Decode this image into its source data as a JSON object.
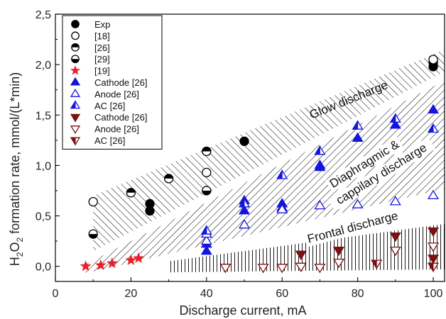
{
  "chart_data": {
    "type": "scatter",
    "xlabel": "Discharge current, mA",
    "ylabel": "H2O2 formation rate, mmol/(L*min)",
    "ylabel_parts": {
      "pre": "H",
      "sub1": "2",
      "mid": "O",
      "sub2": "2",
      "post": " formation rate, mmol/(L*min)"
    },
    "xlim": [
      0,
      103
    ],
    "ylim": [
      -0.15,
      2.5
    ],
    "xticks": [
      0,
      20,
      40,
      60,
      80,
      100
    ],
    "yticks": [
      0.0,
      0.5,
      1.0,
      1.5,
      2.0,
      2.5
    ],
    "xtick_labels": [
      "0",
      "20",
      "40",
      "60",
      "80",
      "100"
    ],
    "ytick_labels": [
      "0,0",
      "0,5",
      "1,0",
      "1,5",
      "2,0",
      "2,5"
    ],
    "grid": false,
    "legend_position": "top-left",
    "bands": [
      {
        "label": "Glow discharge",
        "hatch": "diagonal",
        "lower": [
          [
            10,
            0.15
          ],
          [
            103,
            1.93
          ]
        ],
        "upper": [
          [
            10,
            0.7
          ],
          [
            103,
            2.15
          ]
        ]
      },
      {
        "label_lines": [
          "Diaphragmic &",
          "cappilary discharge"
        ],
        "hatch": "back-diagonal",
        "lower": [
          [
            8,
            -0.07
          ],
          [
            103,
            0.77
          ]
        ],
        "upper": [
          [
            8,
            0.02
          ],
          [
            103,
            1.84
          ]
        ]
      },
      {
        "label": "Frontal discharge",
        "hatch": "vertical",
        "lower": [
          [
            30,
            -0.06
          ],
          [
            103,
            -0.03
          ]
        ],
        "upper": [
          [
            30,
            0.05
          ],
          [
            103,
            0.42
          ]
        ]
      }
    ],
    "series": [
      {
        "name": "Exp",
        "marker": "circle",
        "fill": "full",
        "color": "#000000",
        "points": [
          [
            25,
            0.55
          ],
          [
            25,
            0.62
          ],
          [
            50,
            1.24
          ],
          [
            100,
            1.98
          ],
          [
            100,
            2.02
          ]
        ]
      },
      {
        "name": "[18]",
        "marker": "circle",
        "fill": "none",
        "color": "#000000",
        "points": [
          [
            10,
            0.64
          ],
          [
            40,
            1.14
          ],
          [
            40,
            0.93
          ],
          [
            100,
            2.05
          ]
        ]
      },
      {
        "name": "[26]",
        "marker": "circle",
        "fill": "half-top",
        "color": "#000000",
        "points": [
          [
            20,
            0.73
          ],
          [
            30,
            0.87
          ],
          [
            40,
            1.14
          ]
        ]
      },
      {
        "name": "[29]",
        "marker": "circle",
        "fill": "half-bottom",
        "color": "#000000",
        "points": [
          [
            10,
            0.32
          ],
          [
            40,
            0.75
          ]
        ]
      },
      {
        "name": "[19]",
        "marker": "star",
        "fill": "full",
        "color": "#e8202a",
        "points": [
          [
            8,
            0.0
          ],
          [
            12,
            0.01
          ],
          [
            15,
            0.03
          ],
          [
            20,
            0.06
          ],
          [
            22,
            0.08
          ]
        ]
      },
      {
        "name": "Cathode [26]",
        "marker": "triangle-up",
        "fill": "full",
        "color": "#1515dd",
        "points": [
          [
            40,
            0.15
          ],
          [
            40,
            0.22
          ],
          [
            50,
            0.55
          ],
          [
            50,
            0.65
          ],
          [
            60,
            0.58
          ],
          [
            60,
            0.62
          ],
          [
            70,
            0.98
          ],
          [
            70,
            1.0
          ],
          [
            80,
            1.27
          ],
          [
            90,
            1.4
          ],
          [
            100,
            1.55
          ]
        ]
      },
      {
        "name": "Anode [26]",
        "marker": "triangle-up",
        "fill": "none",
        "color": "#1515dd",
        "points": [
          [
            40,
            0.25
          ],
          [
            40,
            0.32
          ],
          [
            50,
            0.41
          ],
          [
            60,
            0.56
          ],
          [
            70,
            0.6
          ],
          [
            80,
            0.61
          ],
          [
            90,
            0.64
          ],
          [
            100,
            0.7
          ]
        ]
      },
      {
        "name": "AC [26]",
        "marker": "triangle-up",
        "fill": "half-left",
        "color": "#1515dd",
        "points": [
          [
            40,
            0.35
          ],
          [
            50,
            0.62
          ],
          [
            60,
            0.9
          ],
          [
            70,
            1.14
          ],
          [
            80,
            1.39
          ],
          [
            90,
            1.46
          ],
          [
            100,
            1.36
          ]
        ]
      },
      {
        "name": "Cathode [26]",
        "marker": "triangle-down",
        "fill": "full",
        "color": "#7a1010",
        "points": [
          [
            65,
            0.12
          ],
          [
            75,
            0.16
          ],
          [
            90,
            0.3
          ],
          [
            100,
            0.35
          ],
          [
            100,
            0.08
          ]
        ]
      },
      {
        "name": "Anode [26]",
        "marker": "triangle-down",
        "fill": "none",
        "color": "#7a1010",
        "points": [
          [
            45,
            -0.01
          ],
          [
            55,
            -0.01
          ],
          [
            60,
            -0.01
          ],
          [
            65,
            0.0
          ],
          [
            70,
            -0.01
          ],
          [
            75,
            0.04
          ],
          [
            90,
            0.16
          ],
          [
            100,
            0.2
          ]
        ]
      },
      {
        "name": "AC [26]",
        "marker": "triangle-down",
        "fill": "half-left",
        "color": "#7a1010",
        "points": [
          [
            85,
            0.03
          ],
          [
            100,
            0.0
          ]
        ]
      }
    ]
  }
}
